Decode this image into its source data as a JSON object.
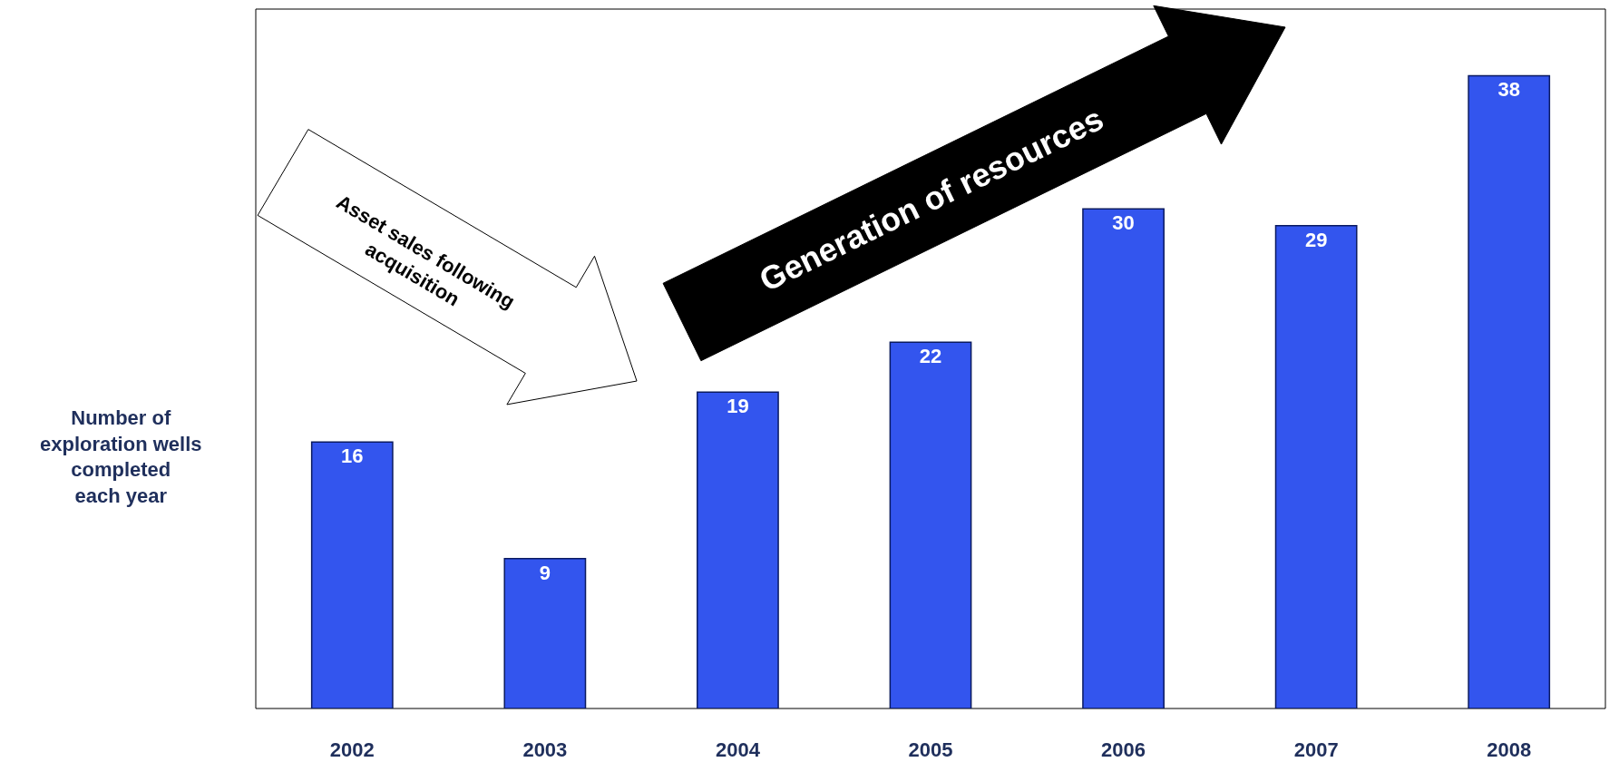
{
  "chart_data": {
    "type": "bar",
    "categories": [
      "2002",
      "2003",
      "2004",
      "2005",
      "2006",
      "2007",
      "2008"
    ],
    "values": [
      16,
      9,
      19,
      22,
      30,
      29,
      38
    ],
    "color": "#3355ee",
    "ylim": [
      0,
      42
    ],
    "ylabel": "Number of\nexploration wells\ncompleted\neach year",
    "data_labels": true,
    "grid": false,
    "legend": false,
    "annotations": [
      "Asset sales following\nacquisition",
      "Generation of resources"
    ]
  }
}
